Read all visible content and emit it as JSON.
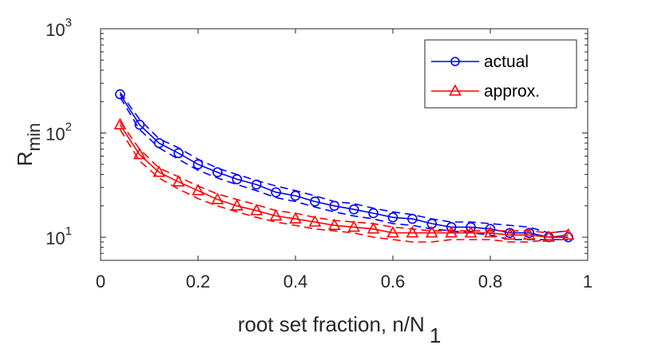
{
  "chart_data": {
    "type": "line",
    "yscale": "log",
    "xlim": [
      0,
      1
    ],
    "ylim": [
      6,
      1000
    ],
    "xticks": [
      0,
      0.2,
      0.4,
      0.6,
      0.8,
      1
    ],
    "xtick_labels": [
      "0",
      "0.2",
      "0.4",
      "0.6",
      "0.8",
      "1"
    ],
    "yticks": [
      10,
      100,
      1000
    ],
    "ytick_labels": [
      {
        "base": "10",
        "exp": "1"
      },
      {
        "base": "10",
        "exp": "2"
      },
      {
        "base": "10",
        "exp": "3"
      }
    ],
    "xlabel": {
      "main": "root set fraction, n/N",
      "sub": "1"
    },
    "ylabel": {
      "main": "R",
      "sub": "min"
    },
    "grid": false,
    "legend_position": "top-right",
    "x": [
      0.04,
      0.08,
      0.12,
      0.16,
      0.2,
      0.24,
      0.28,
      0.32,
      0.36,
      0.4,
      0.44,
      0.48,
      0.52,
      0.56,
      0.6,
      0.64,
      0.68,
      0.72,
      0.76,
      0.8,
      0.84,
      0.88,
      0.92,
      0.96
    ],
    "series": [
      {
        "name": "actual",
        "color": "#0000ff",
        "marker": "circle",
        "values": [
          235,
          120,
          80,
          64,
          50,
          42,
          36,
          32,
          27,
          25,
          22,
          20,
          18.5,
          17,
          15.5,
          15,
          13.5,
          12.5,
          12.5,
          12,
          11,
          11,
          10,
          10
        ],
        "upper": [
          245,
          135,
          88,
          72,
          56,
          46,
          40,
          35,
          31,
          28,
          25,
          22,
          21,
          19,
          17.5,
          16.5,
          15,
          14,
          14,
          13.5,
          13,
          12.5,
          11,
          11.5
        ],
        "lower": [
          220,
          108,
          72,
          56,
          44,
          37,
          32,
          28,
          24,
          22,
          19.5,
          17.5,
          16,
          15,
          13.5,
          13,
          12,
          11.5,
          11,
          10.5,
          9.5,
          9.5,
          9.5,
          9.5
        ]
      },
      {
        "name": "approx.",
        "color": "#ff0000",
        "marker": "triangle",
        "values": [
          120,
          62,
          42,
          34,
          28,
          23,
          20,
          18,
          16,
          15,
          14,
          13,
          12.5,
          12,
          11,
          11,
          11,
          11,
          11,
          11,
          10.5,
          10.5,
          10,
          10.5
        ],
        "upper": [
          128,
          70,
          46,
          38,
          31,
          26,
          23,
          20.5,
          18,
          17,
          15.5,
          14.5,
          14,
          13.5,
          12.5,
          12,
          11.5,
          11.5,
          11.5,
          11.5,
          11.5,
          11.5,
          11,
          11.5
        ],
        "lower": [
          108,
          54,
          37,
          29,
          23.5,
          20,
          17.5,
          15.5,
          14,
          13,
          12,
          11.5,
          11,
          10,
          9.5,
          9,
          9,
          9.5,
          9.5,
          9.5,
          9,
          9,
          9.5,
          9.5
        ]
      }
    ]
  }
}
